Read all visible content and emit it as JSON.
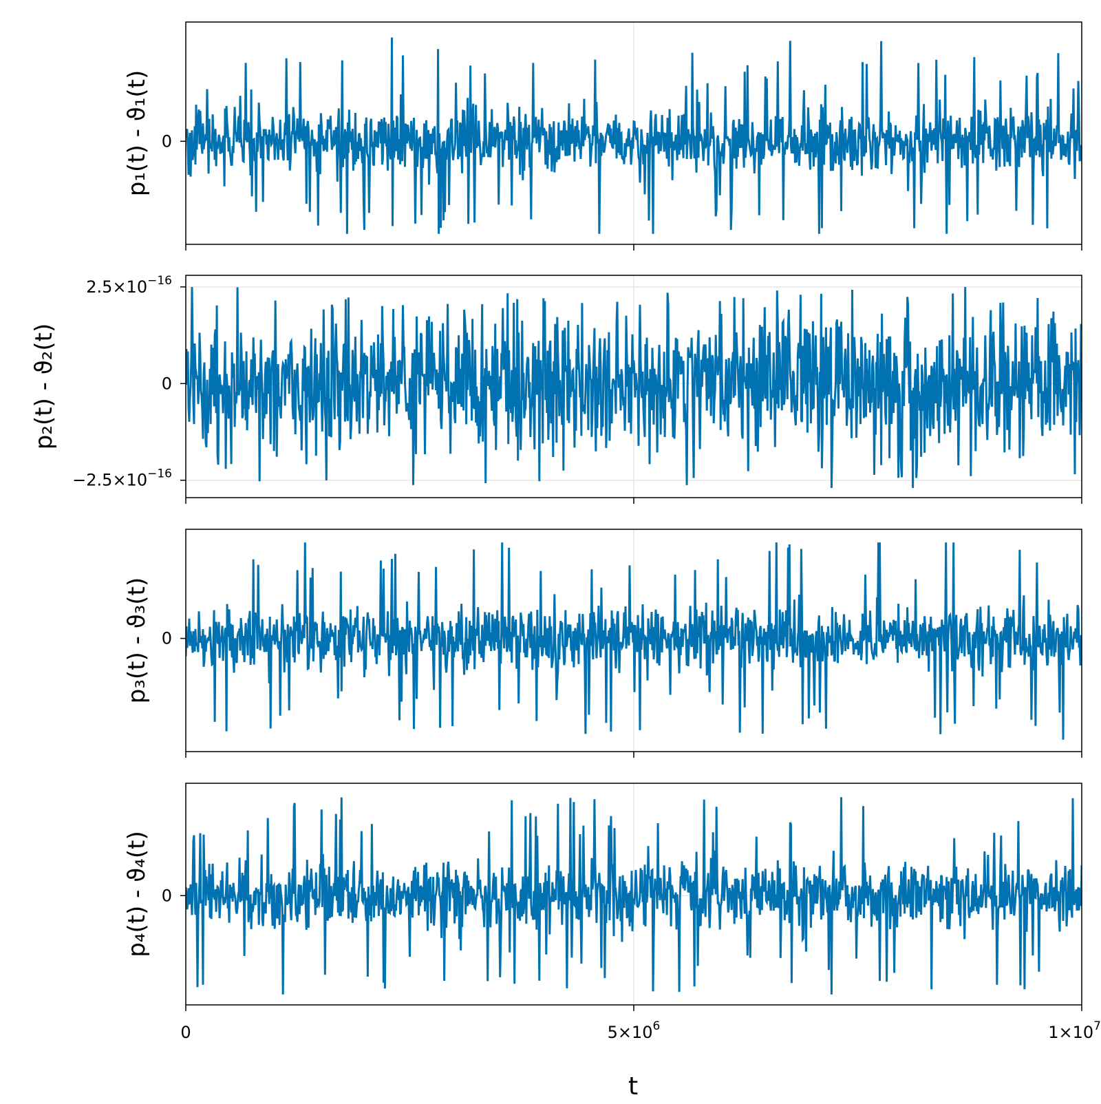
{
  "figure": {
    "xlabel": "t",
    "line_color": "#0072b2",
    "grid_color": "#e6e6e6"
  },
  "chart_data": [
    {
      "type": "line",
      "ylabel": "p₁(t) - ϑ₁(t)",
      "xlim": [
        0,
        10000000
      ],
      "ylim": [
        -1.08,
        1.25
      ],
      "grid": true,
      "series": [
        {
          "values_summary": "dense oscillation about 0",
          "typical_amplitude": 0.3,
          "spike_max": 1.1,
          "spike_min": -0.97
        }
      ],
      "ytick_labels": [
        {
          "value": 0,
          "mantissa": "0",
          "exp": ""
        }
      ],
      "xtick_values": [
        0,
        5000000,
        10000000
      ],
      "xtick_labels": []
    },
    {
      "type": "line",
      "ylabel": "p₂(t) - ϑ₂(t)",
      "xlim": [
        0,
        10000000
      ],
      "ylim": [
        -2.95e-16,
        2.8e-16
      ],
      "grid": true,
      "series": [
        {
          "values_summary": "dense noise about 0",
          "typical_amplitude": 1.5e-16,
          "spike_max": 2.5e-16,
          "spike_min": -2.7e-16
        }
      ],
      "ytick_labels": [
        {
          "value": 2.5e-16,
          "mantissa": "2.5×10",
          "exp": "−16"
        },
        {
          "value": 0,
          "mantissa": "0",
          "exp": ""
        },
        {
          "value": -2.5e-16,
          "mantissa": "−2.5×10",
          "exp": "−16"
        }
      ],
      "xtick_values": [
        0,
        5000000,
        10000000
      ],
      "xtick_labels": []
    },
    {
      "type": "line",
      "ylabel": "p₃(t) - ϑ₃(t)",
      "xlim": [
        0,
        10000000
      ],
      "ylim": [
        -1.12,
        1.08
      ],
      "grid": true,
      "series": [
        {
          "values_summary": "dense oscillation about 0",
          "typical_amplitude": 0.28,
          "spike_max": 0.95,
          "spike_min": -1.05
        }
      ],
      "ytick_labels": [
        {
          "value": 0,
          "mantissa": "0",
          "exp": ""
        }
      ],
      "xtick_values": [
        0,
        5000000,
        10000000
      ],
      "xtick_labels": []
    },
    {
      "type": "line",
      "ylabel": "p₄(t) - ϑ₄(t)",
      "xlim": [
        0,
        10000000
      ],
      "ylim": [
        -1.05,
        1.08
      ],
      "grid": true,
      "series": [
        {
          "values_summary": "dense oscillation about 0",
          "typical_amplitude": 0.28,
          "spike_max": 0.98,
          "spike_min": -0.95
        }
      ],
      "ytick_labels": [
        {
          "value": 0,
          "mantissa": "0",
          "exp": ""
        }
      ],
      "xtick_values": [
        0,
        5000000,
        10000000
      ],
      "xtick_labels": [
        {
          "value": 0,
          "mantissa": "0",
          "exp": ""
        },
        {
          "value": 5000000,
          "mantissa": "5×10",
          "exp": "6"
        },
        {
          "value": 10000000,
          "mantissa": "1×10",
          "exp": "7"
        }
      ]
    }
  ]
}
